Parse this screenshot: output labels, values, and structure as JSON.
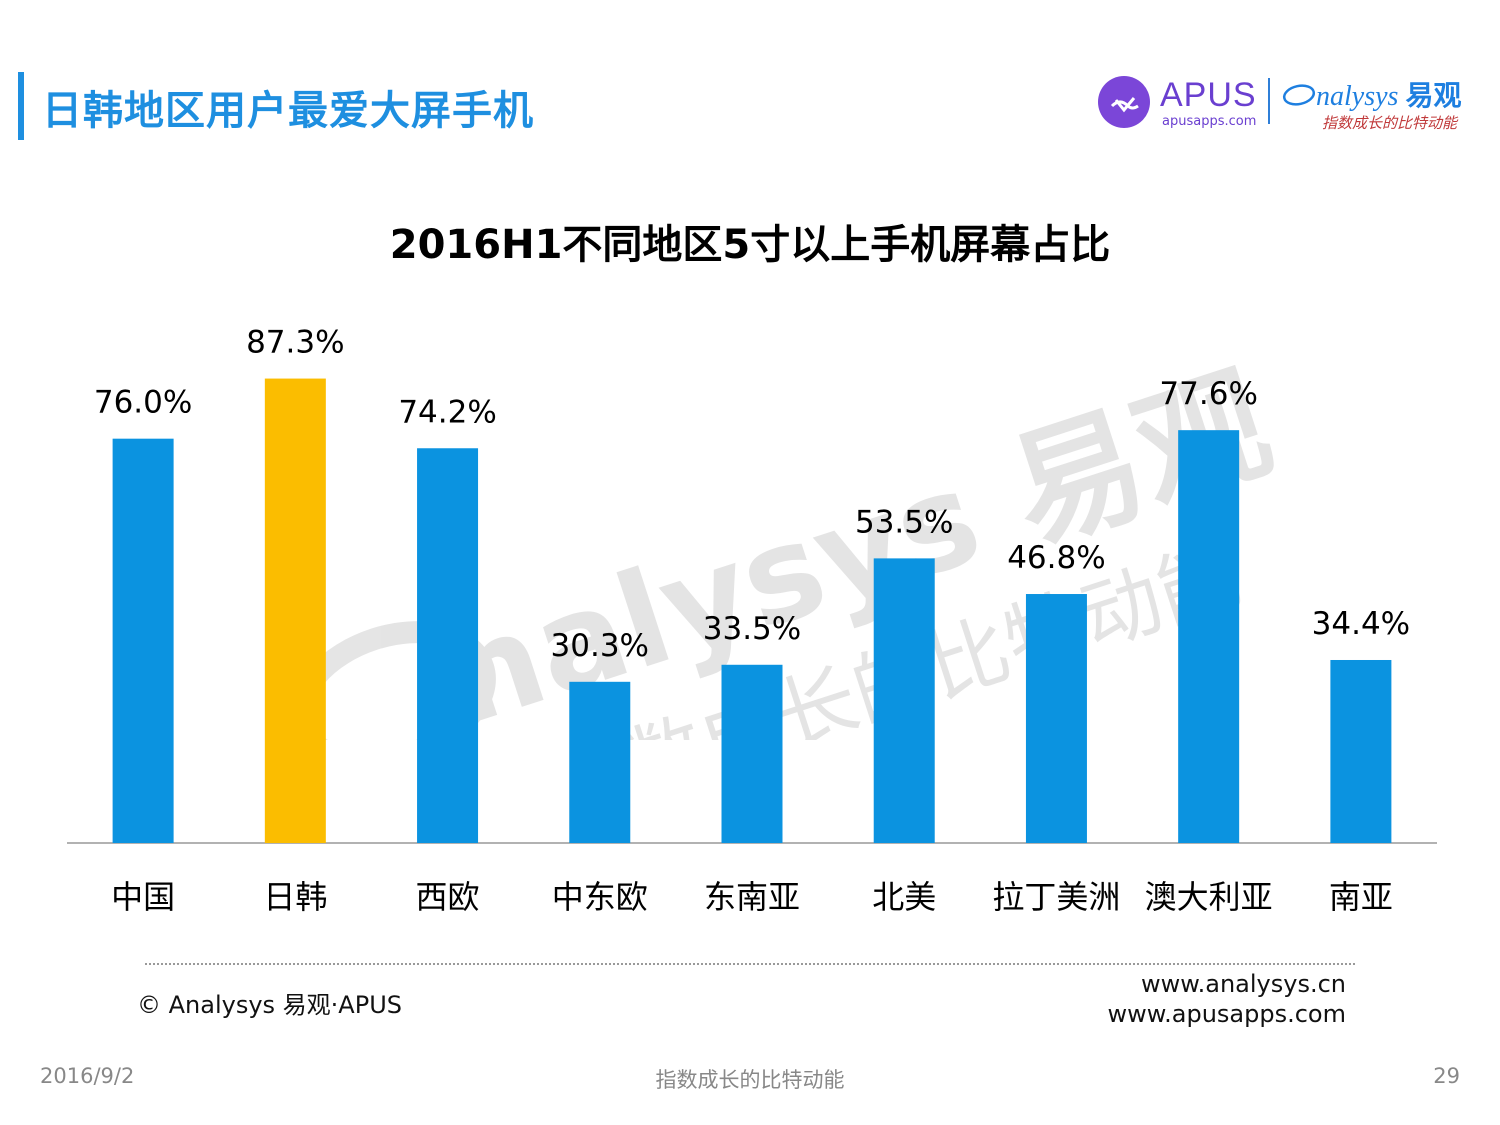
{
  "header": {
    "title": "日韩地区用户最爱大屏手机",
    "apus_name": "APUS",
    "apus_url": "apusapps.com",
    "analysys_name": "nalysys",
    "analysys_cn": "易观",
    "analysys_slogan": "指数成长的比特动能"
  },
  "chart_data": {
    "type": "bar",
    "title": "2016H1不同地区5寸以上手机屏幕占比",
    "categories": [
      "中国",
      "日韩",
      "西欧",
      "中东欧",
      "东南亚",
      "北美",
      "拉丁美洲",
      "澳大利亚",
      "南亚"
    ],
    "values": [
      76.0,
      87.3,
      74.2,
      30.3,
      33.5,
      53.5,
      46.8,
      77.6,
      34.4
    ],
    "labels": [
      "76.0%",
      "87.3%",
      "74.2%",
      "30.3%",
      "33.5%",
      "53.5%",
      "46.8%",
      "77.6%",
      "34.4%"
    ],
    "unit": "%",
    "ylim": [
      0,
      100
    ],
    "highlight_index": 1,
    "colors": {
      "default": "#0b93e0",
      "highlight": "#fbbd00",
      "axis": "#999999"
    },
    "grid": false,
    "legend": "none",
    "xlabel": "",
    "ylabel": ""
  },
  "watermark": {
    "brand": "nalysys 易观",
    "slogan": "指数成长的比特动能"
  },
  "footer": {
    "copyright": "© Analysys 易观·APUS",
    "site1": "www.analysys.cn",
    "site2": "www.apusapps.com",
    "date": "2016/9/2",
    "slogan": "指数成长的比特动能",
    "page": "29"
  }
}
